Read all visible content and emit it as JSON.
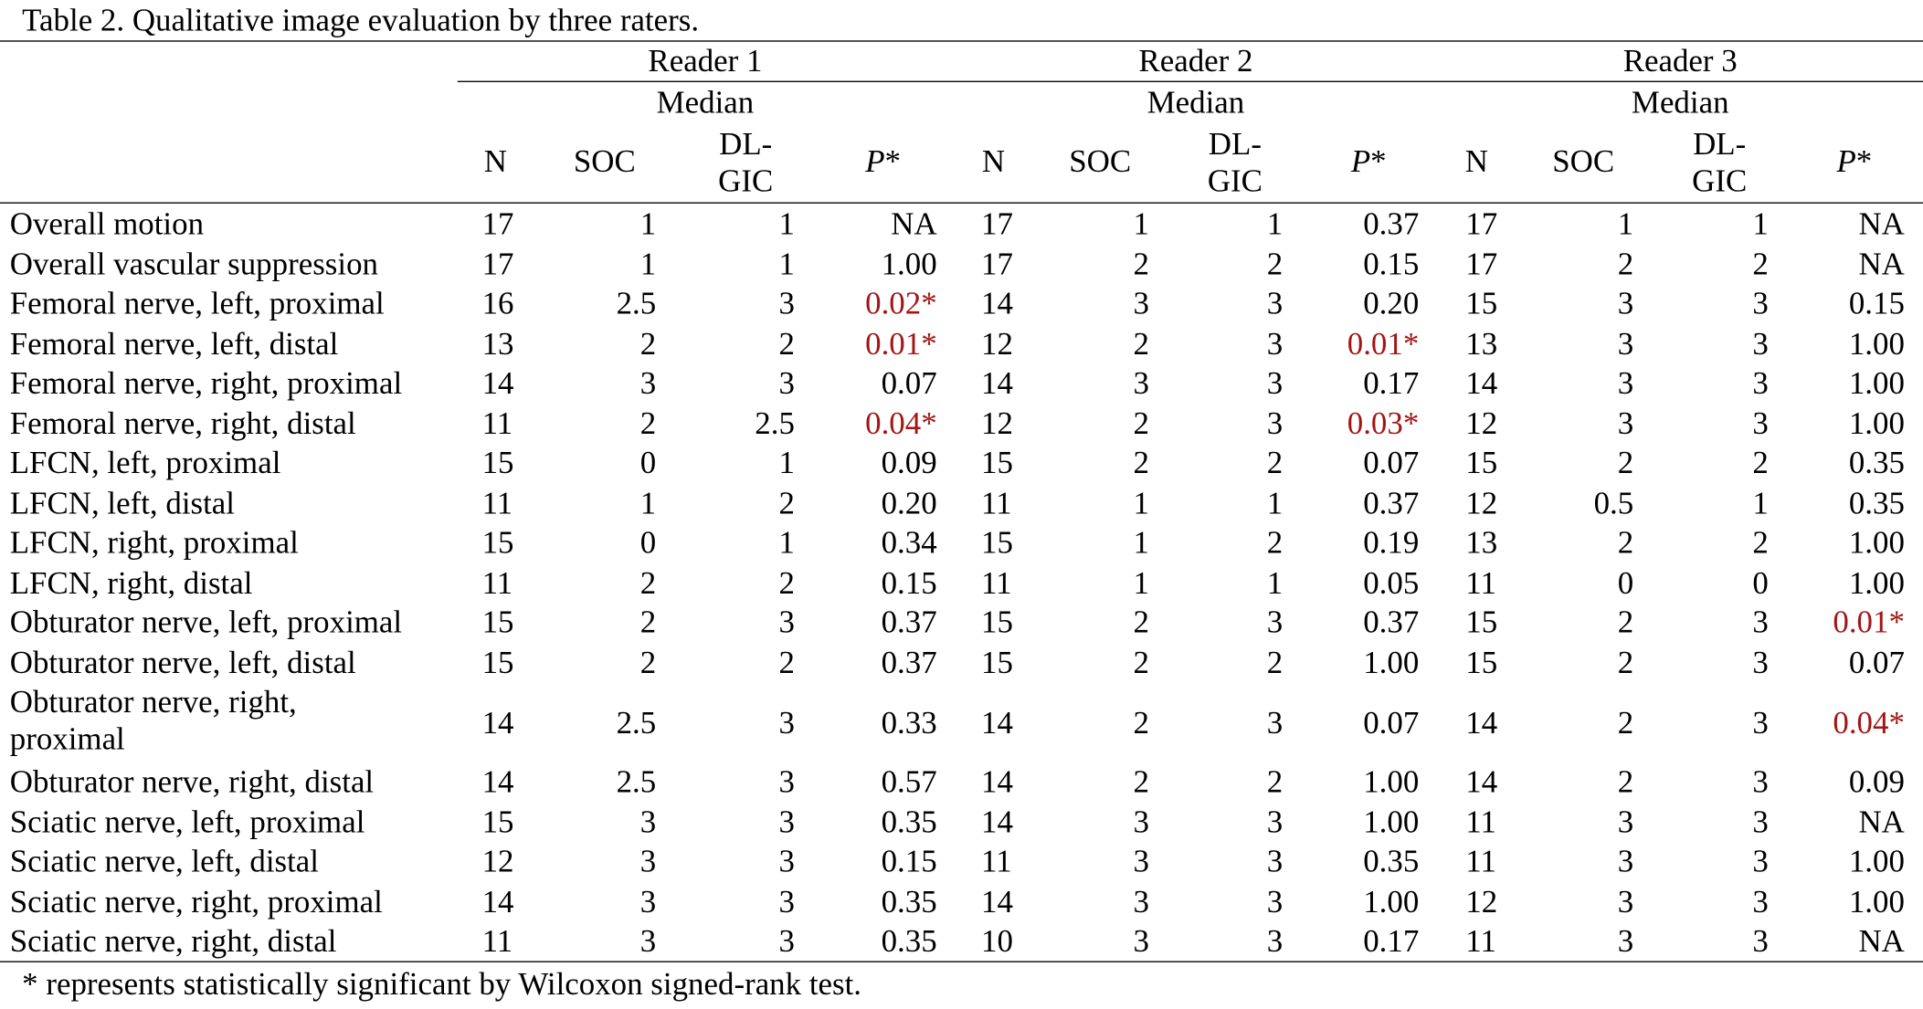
{
  "title": "Table 2. Qualitative image evaluation by three raters.",
  "table": {
    "groups": [
      {
        "label": "Reader 1",
        "subheader": "Median",
        "columns": [
          "N",
          "SOC",
          [
            "DL-",
            "GIC"
          ],
          {
            "italic": "P",
            "plain": "*"
          }
        ]
      },
      {
        "label": "Reader 2",
        "subheader": "Median",
        "columns": [
          "N",
          "SOC",
          [
            "DL-",
            "GIC"
          ],
          {
            "italic": "P",
            "plain": "*"
          }
        ]
      },
      {
        "label": "Reader 3",
        "subheader": "Median",
        "columns": [
          "N",
          "SOC",
          [
            "DL-",
            "GIC"
          ],
          {
            "italic": "P",
            "plain": "*"
          }
        ]
      }
    ],
    "rows": [
      {
        "label": "Overall motion",
        "cells": [
          "17",
          "1",
          "1",
          "NA",
          "17",
          "1",
          "1",
          "0.37",
          "17",
          "1",
          "1",
          "NA"
        ]
      },
      {
        "label": "Overall vascular suppression",
        "cells": [
          "17",
          "1",
          "1",
          "1.00",
          "17",
          "2",
          "2",
          "0.15",
          "17",
          "2",
          "2",
          "NA"
        ]
      },
      {
        "label": "Femoral nerve, left, proximal",
        "cells": [
          "16",
          "2.5",
          "3",
          {
            "text": "0.02*",
            "color": "#a31515"
          },
          "14",
          "3",
          "3",
          "0.20",
          "15",
          "3",
          "3",
          "0.15"
        ]
      },
      {
        "label": "Femoral nerve, left, distal",
        "cells": [
          "13",
          "2",
          "2",
          {
            "text": "0.01*",
            "color": "#a31515"
          },
          "12",
          "2",
          "3",
          {
            "text": "0.01*",
            "color": "#a31515"
          },
          "13",
          "3",
          "3",
          "1.00"
        ]
      },
      {
        "label": "Femoral nerve, right, proximal",
        "cells": [
          "14",
          "3",
          "3",
          "0.07",
          "14",
          "3",
          "3",
          "0.17",
          "14",
          "3",
          "3",
          "1.00"
        ]
      },
      {
        "label": "Femoral nerve, right, distal",
        "cells": [
          "11",
          "2",
          "2.5",
          {
            "text": "0.04*",
            "color": "#a31515"
          },
          "12",
          "2",
          "3",
          {
            "text": "0.03*",
            "color": "#a31515"
          },
          "12",
          "3",
          "3",
          "1.00"
        ]
      },
      {
        "label": "LFCN, left, proximal",
        "cells": [
          "15",
          "0",
          "1",
          "0.09",
          "15",
          "2",
          "2",
          "0.07",
          "15",
          "2",
          "2",
          "0.35"
        ]
      },
      {
        "label": "LFCN, left, distal",
        "cells": [
          "11",
          "1",
          "2",
          "0.20",
          "11",
          "1",
          "1",
          "0.37",
          "12",
          "0.5",
          "1",
          "0.35"
        ]
      },
      {
        "label": "LFCN, right, proximal",
        "cells": [
          "15",
          "0",
          "1",
          "0.34",
          "15",
          "1",
          "2",
          "0.19",
          "13",
          "2",
          "2",
          "1.00"
        ]
      },
      {
        "label": "LFCN, right, distal",
        "cells": [
          "11",
          "2",
          "2",
          "0.15",
          "11",
          "1",
          "1",
          "0.05",
          "11",
          "0",
          "0",
          "1.00"
        ]
      },
      {
        "label": "Obturator nerve, left, proximal",
        "cells": [
          "15",
          "2",
          "3",
          "0.37",
          "15",
          "2",
          "3",
          "0.37",
          "15",
          "2",
          "3",
          {
            "text": "0.01*",
            "color": "#a31515"
          }
        ]
      },
      {
        "label": "Obturator nerve, left, distal",
        "cells": [
          "15",
          "2",
          "2",
          "0.37",
          "15",
          "2",
          "2",
          "1.00",
          "15",
          "2",
          "3",
          "0.07"
        ]
      },
      {
        "label": [
          "Obturator nerve, right,",
          "proximal"
        ],
        "cells": [
          "14",
          "2.5",
          "3",
          "0.33",
          "14",
          "2",
          "3",
          "0.07",
          "14",
          "2",
          "3",
          {
            "text": "0.04*",
            "color": "#a31515"
          }
        ]
      },
      {
        "label": "Obturator nerve, right, distal",
        "cells": [
          "14",
          "2.5",
          "3",
          "0.57",
          "14",
          "2",
          "2",
          "1.00",
          "14",
          "2",
          "3",
          "0.09"
        ]
      },
      {
        "label": "Sciatic nerve, left, proximal",
        "cells": [
          "15",
          "3",
          "3",
          "0.35",
          "14",
          "3",
          "3",
          "1.00",
          "11",
          "3",
          "3",
          "NA"
        ]
      },
      {
        "label": "Sciatic nerve, left, distal",
        "cells": [
          "12",
          "3",
          "3",
          "0.15",
          "11",
          "3",
          "3",
          "0.35",
          "11",
          "3",
          "3",
          "1.00"
        ]
      },
      {
        "label": "Sciatic nerve, right, proximal",
        "cells": [
          "14",
          "3",
          "3",
          "0.35",
          "14",
          "3",
          "3",
          "1.00",
          "12",
          "3",
          "3",
          "1.00"
        ]
      },
      {
        "label": "Sciatic nerve, right, distal",
        "cells": [
          "11",
          "3",
          "3",
          "0.35",
          "10",
          "3",
          "3",
          "0.17",
          "11",
          "3",
          "3",
          "NA"
        ]
      }
    ]
  },
  "footnote": "* represents statistically significant by Wilcoxon signed-rank test."
}
